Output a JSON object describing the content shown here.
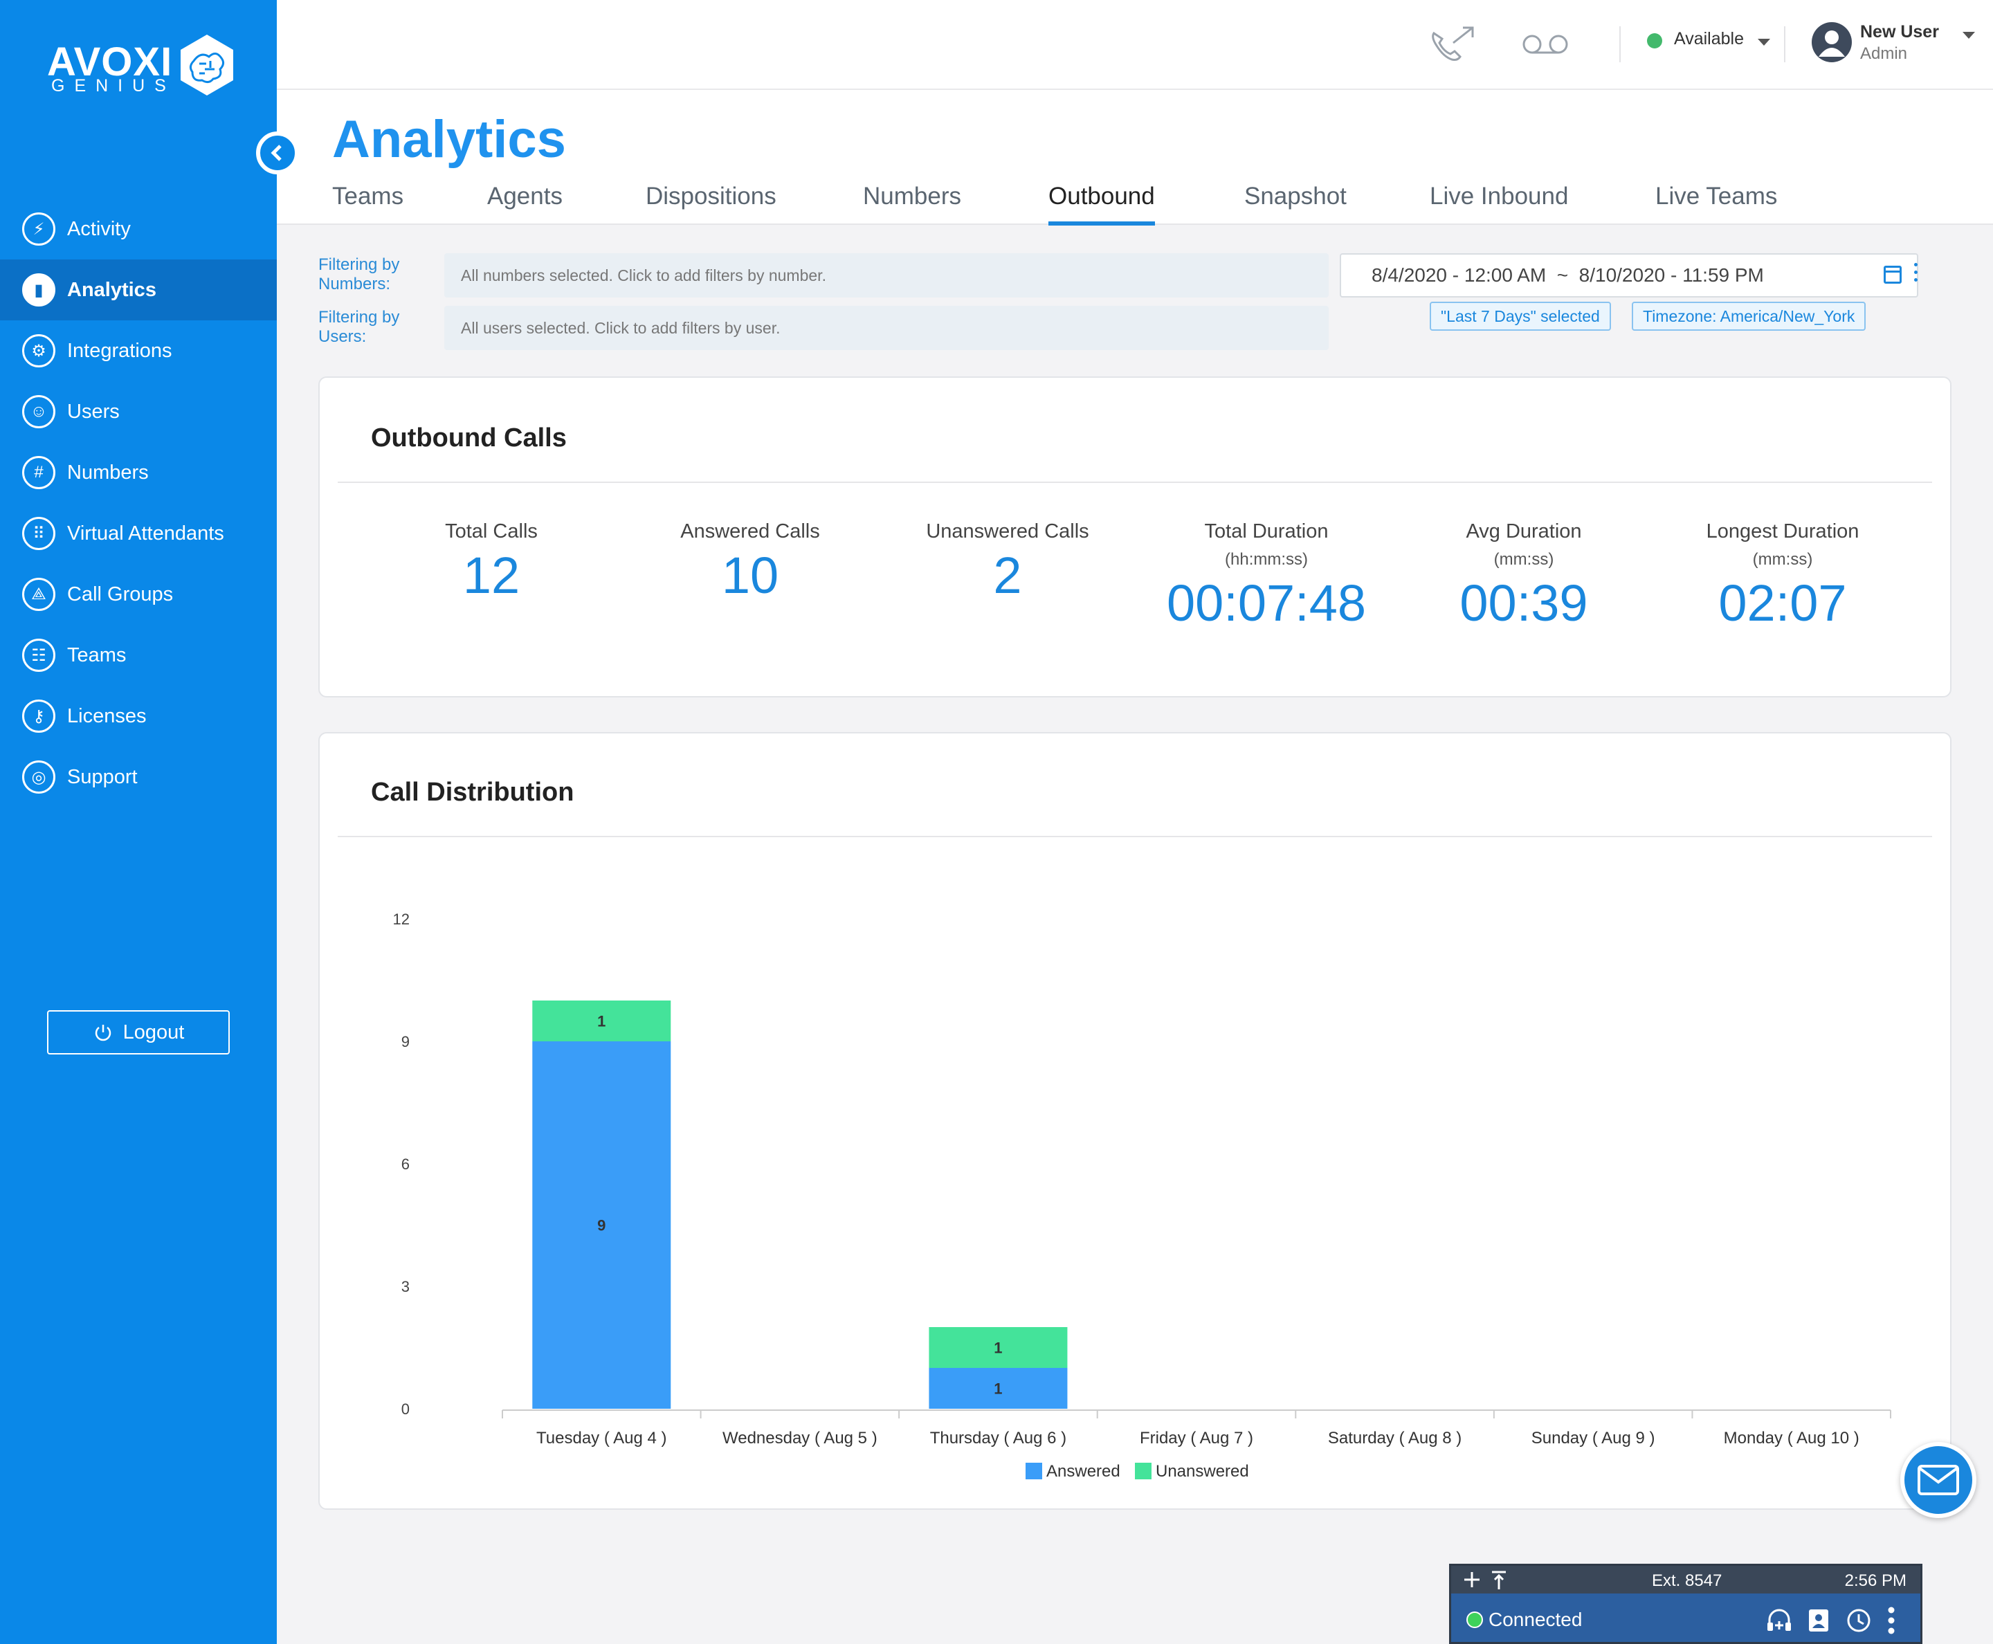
{
  "logo": {
    "main": "AVOXI",
    "sub": "GENIUS"
  },
  "sidebar": {
    "items": [
      {
        "label": "Activity",
        "icon": "lightning-icon",
        "glyph": "⚡",
        "active": false
      },
      {
        "label": "Analytics",
        "icon": "bar-chart-icon",
        "glyph": "▮",
        "active": true
      },
      {
        "label": "Integrations",
        "icon": "gears-icon",
        "glyph": "⚙",
        "active": false
      },
      {
        "label": "Users",
        "icon": "users-icon",
        "glyph": "☺",
        "active": false
      },
      {
        "label": "Numbers",
        "icon": "hash-icon",
        "glyph": "#",
        "active": false
      },
      {
        "label": "Virtual Attendants",
        "icon": "keypad-icon",
        "glyph": "⠿",
        "active": false
      },
      {
        "label": "Call Groups",
        "icon": "nodes-icon",
        "glyph": "⟁",
        "active": false
      },
      {
        "label": "Teams",
        "icon": "team-icon",
        "glyph": "☷",
        "active": false
      },
      {
        "label": "Licenses",
        "icon": "key-icon",
        "glyph": "⚷",
        "active": false
      },
      {
        "label": "Support",
        "icon": "lifebuoy-icon",
        "glyph": "◎",
        "active": false
      }
    ],
    "logout_label": "Logout"
  },
  "header": {
    "status": "Available",
    "status_color": "#43b96c",
    "user_name": "New User",
    "user_role": "Admin"
  },
  "page": {
    "title": "Analytics",
    "tabs": [
      {
        "label": "Teams",
        "active": false
      },
      {
        "label": "Agents",
        "active": false
      },
      {
        "label": "Dispositions",
        "active": false
      },
      {
        "label": "Numbers",
        "active": false
      },
      {
        "label": "Outbound",
        "active": true
      },
      {
        "label": "Snapshot",
        "active": false
      },
      {
        "label": "Live Inbound",
        "active": false
      },
      {
        "label": "Live Teams",
        "active": false
      }
    ]
  },
  "filters": {
    "numbers_label_1": "Filtering by",
    "numbers_label_2": "Numbers:",
    "numbers_placeholder": "All numbers selected. Click to add filters by number.",
    "users_label_1": "Filtering by",
    "users_label_2": "Users:",
    "users_placeholder": "All users selected. Click to add filters by user.",
    "date_range": "8/4/2020 - 12:00 AM  ~  8/10/2020 - 11:59 PM",
    "chip_range": "\"Last 7 Days\" selected",
    "chip_timezone": "Timezone: America/New_York"
  },
  "outbound": {
    "title": "Outbound Calls",
    "stats": [
      {
        "label": "Total Calls",
        "sub": "",
        "value": "12"
      },
      {
        "label": "Answered Calls",
        "sub": "",
        "value": "10"
      },
      {
        "label": "Unanswered Calls",
        "sub": "",
        "value": "2"
      },
      {
        "label": "Total Duration",
        "sub": "(hh:mm:ss)",
        "value": "00:07:48"
      },
      {
        "label": "Avg Duration",
        "sub": "(mm:ss)",
        "value": "00:39"
      },
      {
        "label": "Longest Duration",
        "sub": "(mm:ss)",
        "value": "02:07"
      }
    ]
  },
  "distribution": {
    "title": "Call Distribution"
  },
  "chart_data": {
    "type": "bar",
    "stacked": true,
    "categories": [
      "Tuesday ( Aug 4 )",
      "Wednesday ( Aug 5 )",
      "Thursday ( Aug 6 )",
      "Friday ( Aug 7 )",
      "Saturday ( Aug 8 )",
      "Sunday ( Aug 9 )",
      "Monday ( Aug 10 )"
    ],
    "series": [
      {
        "name": "Answered",
        "color": "#3a9df8",
        "values": [
          9,
          0,
          1,
          0,
          0,
          0,
          0
        ]
      },
      {
        "name": "Unanswered",
        "color": "#44e39a",
        "values": [
          1,
          0,
          1,
          0,
          0,
          0,
          0
        ]
      }
    ],
    "yticks": [
      0,
      3,
      6,
      9,
      12
    ],
    "ylim": [
      0,
      12
    ],
    "legend": "bottom-center",
    "grid": false
  },
  "phonebar": {
    "ext": "Ext. 8547",
    "time": "2:56 PM",
    "status": "Connected",
    "status_color": "#3ed25a"
  }
}
